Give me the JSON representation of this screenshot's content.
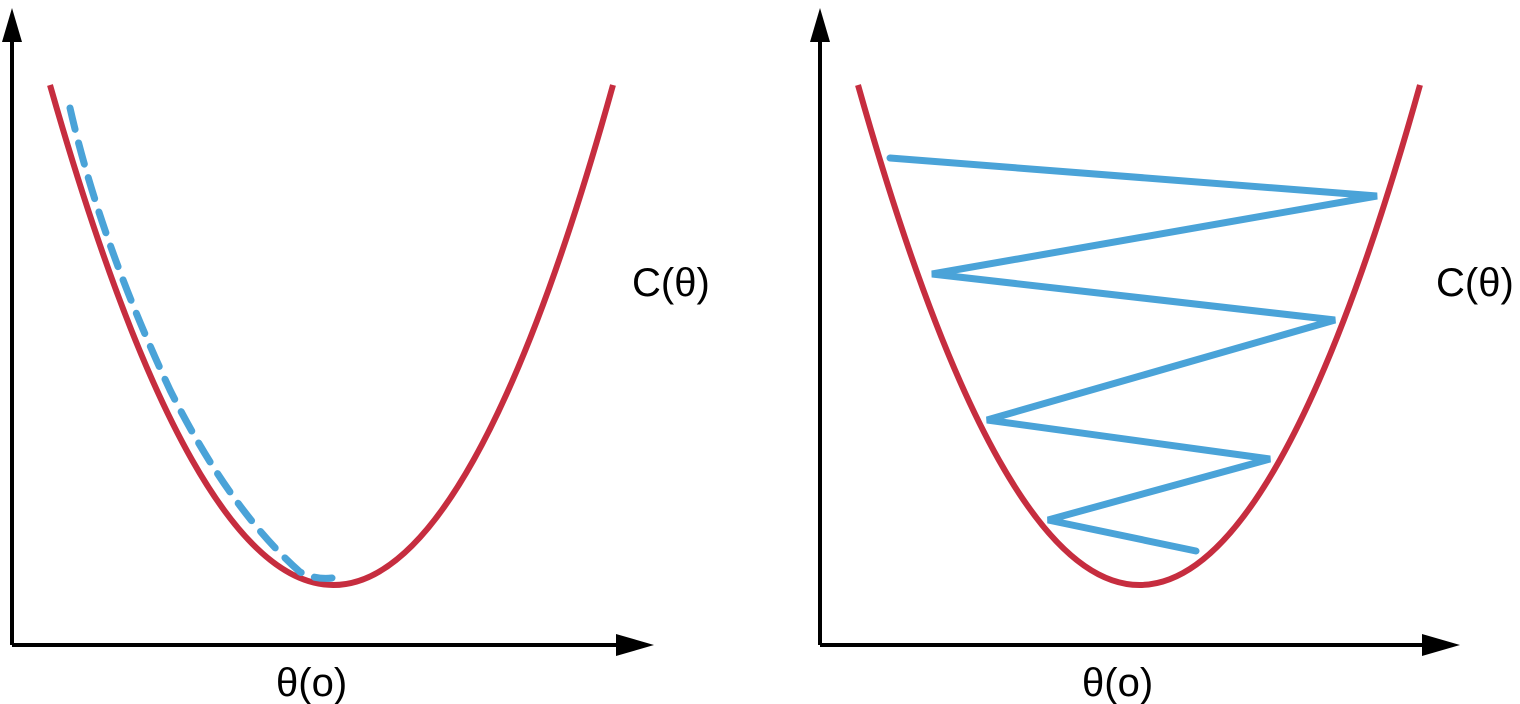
{
  "colors": {
    "axis": "#000000",
    "curve": "#c62d3f",
    "path": "#4aa3d8",
    "background": "#ffffff"
  },
  "panels": [
    {
      "id": "left",
      "y_label": "C(θ)",
      "x_label": "θ(o)",
      "descent_path_style": "dashed",
      "descent_steps": "small steps along the curve down to the minimum"
    },
    {
      "id": "right",
      "y_label": "C(θ)",
      "x_label": "θ(o)",
      "descent_path_style": "solid",
      "descent_steps": "large steps bouncing between both sides of the curve toward the minimum"
    }
  ]
}
